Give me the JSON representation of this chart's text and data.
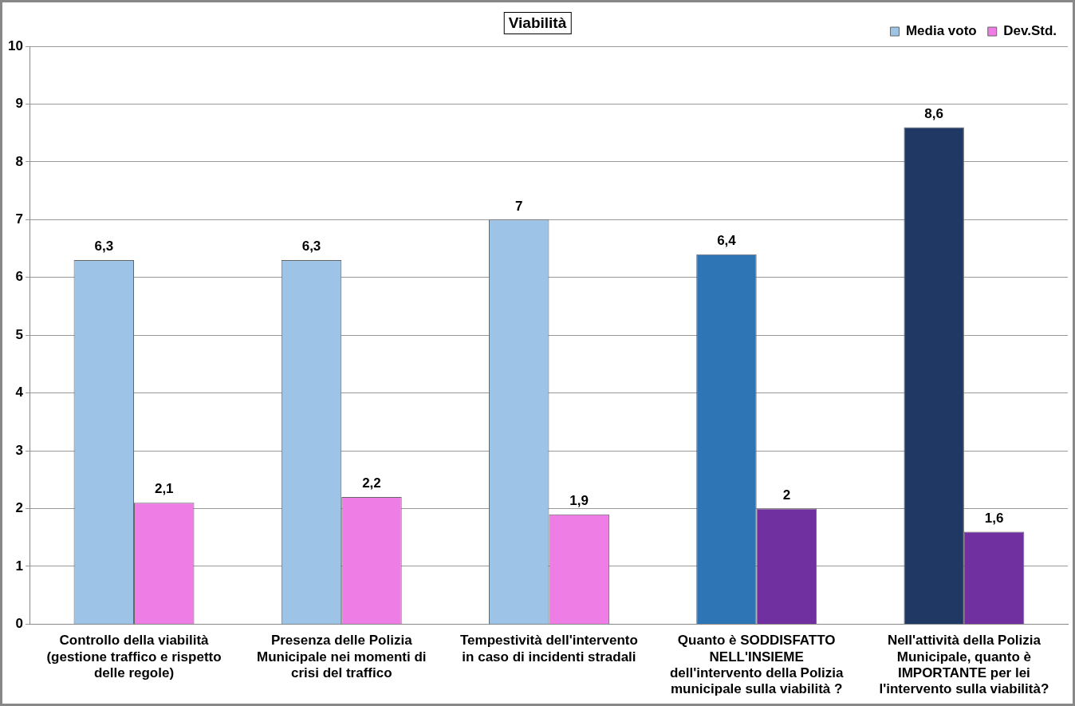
{
  "chart_data": {
    "type": "bar",
    "title": "Viabilità",
    "categories": [
      "Controllo della viabilità (gestione traffico e rispetto delle regole)",
      "Presenza delle Polizia Municipale nei momenti di crisi del traffico",
      "Tempestività dell'intervento in caso di incidenti stradali",
      "Quanto è SODDISFATTO NELL'INSIEME dell'intervento della Polizia municipale sulla viabilità ?",
      "Nell'attività della Polizia Municipale, quanto è IMPORTANTE per lei l'intervento sulla viabilità?"
    ],
    "series": [
      {
        "name": "Media voto",
        "colors": [
          "#9dc3e6",
          "#9dc3e6",
          "#9dc3e6",
          "#2e75b6",
          "#1f3864"
        ],
        "values": [
          6.3,
          6.3,
          7,
          6.4,
          8.6
        ],
        "value_labels": [
          "6,3",
          "6,3",
          "7",
          "6,4",
          "8,6"
        ]
      },
      {
        "name": "Dev.Std.",
        "colors": [
          "#ee7de6",
          "#ee7de6",
          "#ee7de6",
          "#7030a0",
          "#7030a0"
        ],
        "values": [
          2.1,
          2.2,
          1.9,
          2,
          1.6
        ],
        "value_labels": [
          "2,1",
          "2,2",
          "1,9",
          "2",
          "1,6"
        ]
      }
    ],
    "ylim": [
      0,
      10
    ],
    "yticks": [
      0,
      1,
      2,
      3,
      4,
      5,
      6,
      7,
      8,
      9,
      10
    ],
    "grid": "y",
    "legend": "top right"
  }
}
